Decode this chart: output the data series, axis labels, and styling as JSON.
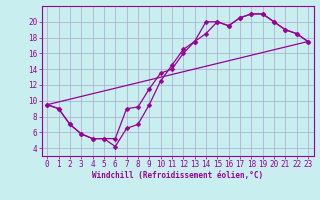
{
  "xlabel": "Windchill (Refroidissement éolien,°C)",
  "bg_color": "#c8eef0",
  "line_color": "#990099",
  "grid_color": "#aaaacc",
  "xlim": [
    -0.5,
    23.5
  ],
  "ylim": [
    3,
    22
  ],
  "xticks": [
    0,
    1,
    2,
    3,
    4,
    5,
    6,
    7,
    8,
    9,
    10,
    11,
    12,
    13,
    14,
    15,
    16,
    17,
    18,
    19,
    20,
    21,
    22,
    23
  ],
  "yticks": [
    4,
    6,
    8,
    10,
    12,
    14,
    16,
    18,
    20
  ],
  "line1_x": [
    0,
    1,
    2,
    3,
    4,
    5,
    6,
    7,
    8,
    9,
    10,
    11,
    12,
    13,
    14,
    15,
    16,
    17,
    18,
    19,
    20,
    21,
    22,
    23
  ],
  "line1_y": [
    9.5,
    9.0,
    7.0,
    5.8,
    5.2,
    5.2,
    5.2,
    9.0,
    9.2,
    11.5,
    13.5,
    14.0,
    16.0,
    17.5,
    18.5,
    20.0,
    19.5,
    20.5,
    21.0,
    21.0,
    20.0,
    19.0,
    18.5,
    17.5
  ],
  "line2_x": [
    0,
    1,
    2,
    3,
    4,
    5,
    6,
    7,
    8,
    9,
    10,
    11,
    12,
    13,
    14,
    15,
    16,
    17,
    18,
    19,
    20,
    21,
    22,
    23
  ],
  "line2_y": [
    9.5,
    9.0,
    7.0,
    5.8,
    5.2,
    5.2,
    4.2,
    6.5,
    7.0,
    9.5,
    12.5,
    14.5,
    16.5,
    17.5,
    20.0,
    20.0,
    19.5,
    20.5,
    21.0,
    21.0,
    20.0,
    19.0,
    18.5,
    17.5
  ],
  "line3_x": [
    0,
    23
  ],
  "line3_y": [
    9.5,
    17.5
  ],
  "xlabel_fontsize": 5.5,
  "tick_fontsize": 5.5,
  "marker_size": 2.5,
  "linewidth": 0.9
}
